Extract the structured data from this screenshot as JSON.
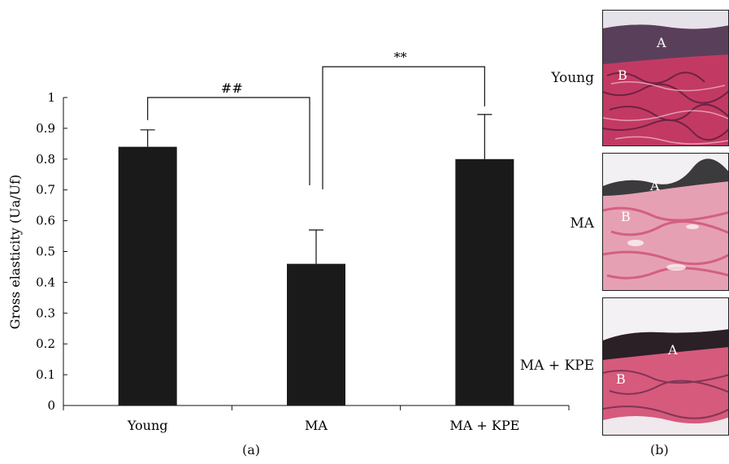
{
  "chart_data": {
    "type": "bar",
    "categories": [
      "Young",
      "MA",
      "MA + KPE"
    ],
    "values": [
      0.84,
      0.46,
      0.8
    ],
    "errors": [
      0.055,
      0.11,
      0.145
    ],
    "title": "",
    "xlabel": "",
    "ylabel": "Gross elasticity (Ua/Uf)",
    "ylim": [
      0,
      1
    ],
    "yticks": [
      "0",
      "0.1",
      "0.2",
      "0.3",
      "0.4",
      "0.5",
      "0.6",
      "0.7",
      "0.8",
      "0.9",
      "1"
    ],
    "grid": false,
    "bar_color": "#1a1a1a",
    "significance": [
      {
        "from": "Young",
        "to": "MA",
        "label": "##"
      },
      {
        "from": "MA",
        "to": "MA + KPE",
        "label": "**"
      }
    ]
  },
  "panels": {
    "a_label": "(a)",
    "b_label": "(b)"
  },
  "micrographs": [
    {
      "label": "Young",
      "layer_a": "A",
      "layer_b": "B"
    },
    {
      "label": "MA",
      "layer_a": "A",
      "layer_b": "B"
    },
    {
      "label": "MA + KPE",
      "layer_a": "A",
      "layer_b": "B"
    }
  ],
  "colors": {
    "epidermis": "#3d2a3f",
    "dermis_pink": "#d9496e",
    "dermis_light": "#e9a7b8",
    "dermis_dark": "#4a1c3a"
  }
}
